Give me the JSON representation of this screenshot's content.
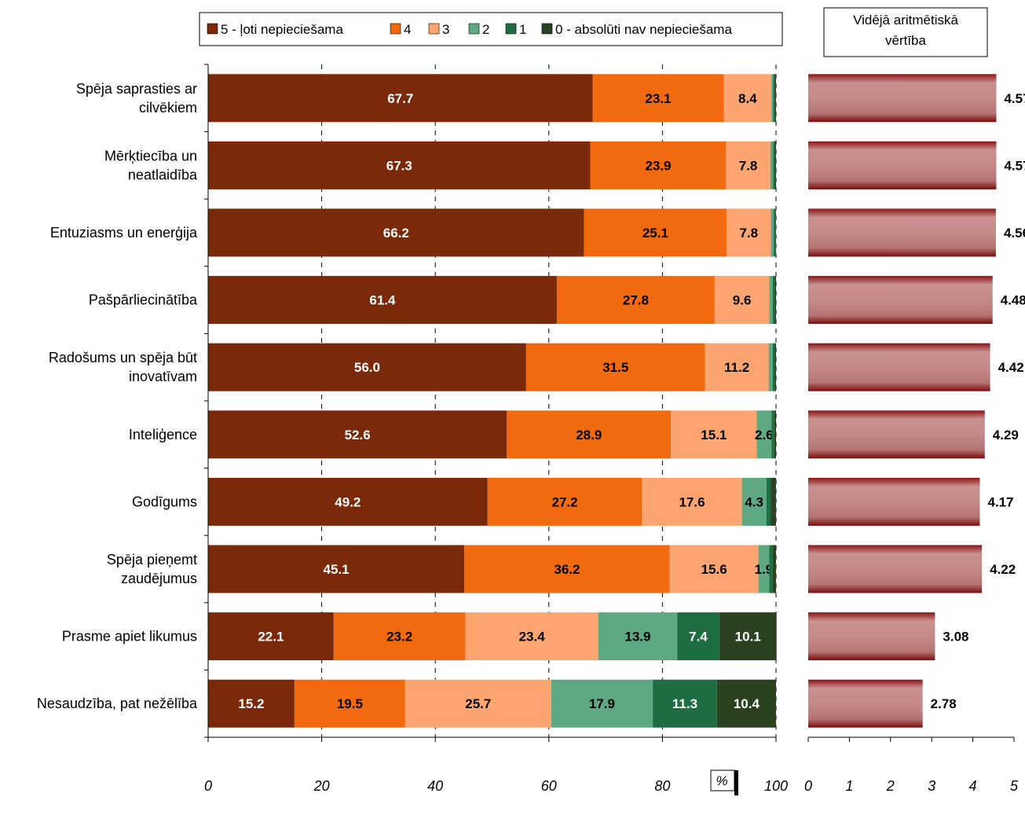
{
  "chart_data": [
    {
      "type": "bar",
      "orientation": "horizontal",
      "stacked": true,
      "categories": [
        "Spēja saprasties ar cilvēkiem",
        "Mērķtiecība un neatlaidība",
        "Entuziasms un enerģija",
        "Pašpārliecinātība",
        "Radošums un spēja būt inovatīvam",
        "Inteliģence",
        "Godīgums",
        "Spēja pieņemt zaudējumus",
        "Prasme apiet likumus",
        "Nesaudzība, pat nežēlība"
      ],
      "category_lines": [
        [
          "Spēja saprasties ar",
          "cilvēkiem"
        ],
        [
          "Mērķtiecība un",
          "neatlaidība"
        ],
        [
          "Entuziasms un enerģija"
        ],
        [
          "Pašpārliecinātība"
        ],
        [
          "Radošums un spēja būt",
          "inovatīvam"
        ],
        [
          "Inteliģence"
        ],
        [
          "Godīgums"
        ],
        [
          "Spēja pieņemt",
          "zaudējumus"
        ],
        [
          "Prasme apiet likumus"
        ],
        [
          "Nesaudzība, pat nežēlība"
        ]
      ],
      "series": [
        {
          "name": "5 - ļoti nepieciešama",
          "color": "#7a2a0a",
          "label_color": "#ffffff",
          "values": [
            67.7,
            67.3,
            66.2,
            61.4,
            56.0,
            52.6,
            49.2,
            45.1,
            22.1,
            15.2
          ]
        },
        {
          "name": "4",
          "color": "#f26a10",
          "label_color": "#000000",
          "values": [
            23.1,
            23.9,
            25.1,
            27.8,
            31.5,
            28.9,
            27.2,
            36.2,
            23.2,
            19.5
          ]
        },
        {
          "name": "3",
          "color": "#fca570",
          "label_color": "#000000",
          "values": [
            8.4,
            7.8,
            7.8,
            9.6,
            11.2,
            15.1,
            17.6,
            15.6,
            23.4,
            25.7
          ]
        },
        {
          "name": "2",
          "color": "#5ea982",
          "label_color": "#000000",
          "values": [
            0.3,
            0.5,
            0.5,
            0.6,
            0.7,
            2.6,
            4.3,
            1.9,
            13.9,
            17.9
          ]
        },
        {
          "name": "1",
          "color": "#1f6e42",
          "label_color": "#ffffff",
          "values": [
            0.3,
            0.3,
            0.3,
            0.4,
            0.4,
            0.5,
            0.8,
            0.6,
            7.4,
            11.3
          ]
        },
        {
          "name": "0 - absolūti nav nepieciešama",
          "color": "#2a4220",
          "label_color": "#ffffff",
          "values": [
            0.2,
            0.2,
            0.1,
            0.2,
            0.2,
            0.3,
            0.9,
            0.6,
            10.1,
            10.4
          ]
        }
      ],
      "value_labels": [
        [
          "67.7",
          "23.1",
          "8.4",
          "",
          "",
          ""
        ],
        [
          "67.3",
          "23.9",
          "7.8",
          "",
          "",
          ""
        ],
        [
          "66.2",
          "25.1",
          "7.8",
          "",
          "",
          ""
        ],
        [
          "61.4",
          "27.8",
          "9.6",
          "",
          "",
          ""
        ],
        [
          "56.0",
          "31.5",
          "11.2",
          "",
          "",
          ""
        ],
        [
          "52.6",
          "28.9",
          "15.1",
          "2.6",
          "",
          ""
        ],
        [
          "49.2",
          "27.2",
          "17.6",
          "4.3",
          "",
          ""
        ],
        [
          "45.1",
          "36.2",
          "15.6",
          "1.9",
          "",
          ""
        ],
        [
          "22.1",
          "23.2",
          "23.4",
          "13.9",
          "7.4",
          "10.1"
        ],
        [
          "15.2",
          "19.5",
          "25.7",
          "17.9",
          "11.3",
          "10.4"
        ]
      ],
      "xlim": [
        0,
        100
      ],
      "xticks": [
        "0",
        "20",
        "40",
        "60",
        "80",
        "100"
      ],
      "xlabel": "%",
      "grid": true,
      "legend_position": "top"
    },
    {
      "type": "bar",
      "orientation": "horizontal",
      "title": "Vidējā aritmētiskā vērtība",
      "categories": [
        "Spēja saprasties ar cilvēkiem",
        "Mērķtiecība un neatlaidība",
        "Entuziasms un enerģija",
        "Pašpārliecinātība",
        "Radošums un spēja būt inovatīvam",
        "Inteliģence",
        "Godīgums",
        "Spēja pieņemt zaudējumus",
        "Prasme apiet likumus",
        "Nesaudzība, pat nežēlība"
      ],
      "values": [
        4.57,
        4.57,
        4.56,
        4.48,
        4.42,
        4.29,
        4.17,
        4.22,
        3.08,
        2.78
      ],
      "value_labels": [
        "4.57",
        "4.57",
        "4.56",
        "4.48",
        "4.42",
        "4.29",
        "4.17",
        "4.22",
        "3.08",
        "2.78"
      ],
      "xlim": [
        0,
        5
      ],
      "xticks": [
        "0",
        "1",
        "2",
        "3",
        "4",
        "5"
      ],
      "color": "#c08080",
      "edge_color": "#7a1010"
    }
  ]
}
